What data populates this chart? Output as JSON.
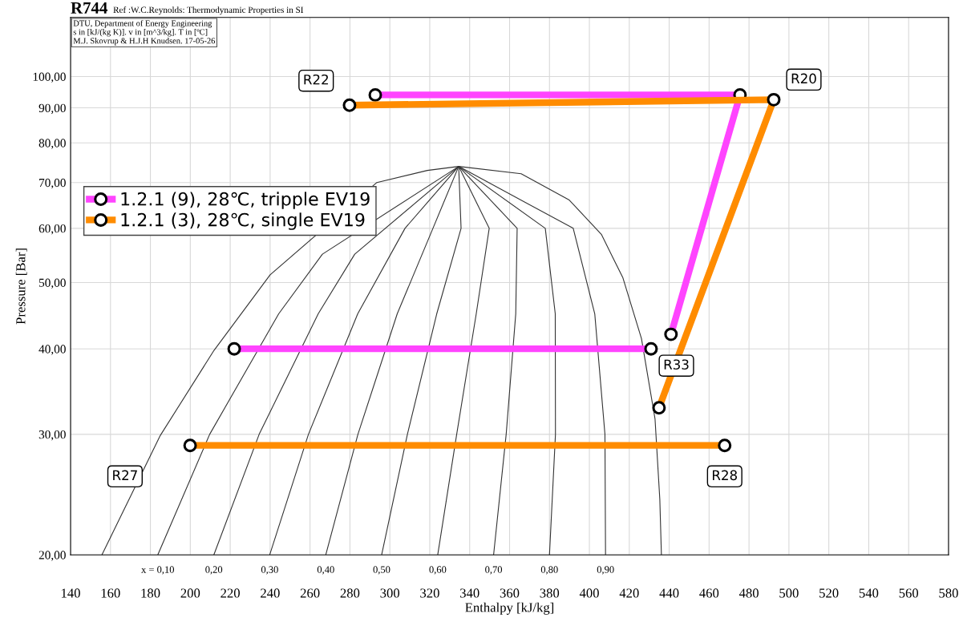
{
  "chart_data": {
    "type": "line",
    "title": "R744",
    "subtitle": "Ref :W.C.Reynolds: Thermodynamic Properties in SI",
    "xlabel": "Enthalpy [kJ/kg]",
    "ylabel": "Pressure [Bar]",
    "log": "y",
    "grid": true,
    "legend": "left",
    "marker": "circle",
    "line_style": "solid",
    "xlim": [
      140,
      580
    ],
    "xticks": [
      140,
      160,
      180,
      200,
      220,
      240,
      260,
      280,
      300,
      320,
      340,
      360,
      380,
      400,
      420,
      440,
      460,
      480,
      500,
      520,
      540,
      560,
      580
    ],
    "ylim": [
      20,
      122
    ],
    "yticks": [
      {
        "value": 20,
        "label": "20,00"
      },
      {
        "value": 30,
        "label": "30,00"
      },
      {
        "value": 40,
        "label": "40,00"
      },
      {
        "value": 50,
        "label": "50,00"
      },
      {
        "value": 60,
        "label": "60,00"
      },
      {
        "value": 70,
        "label": "70,00"
      },
      {
        "value": 80,
        "label": "80,00"
      },
      {
        "value": 90,
        "label": "90,00"
      },
      {
        "value": 100,
        "label": "100,00"
      }
    ],
    "series": [
      {
        "color": "#333333",
        "marker": "none",
        "x": [
          155.7,
          185.0,
          211.9,
          240.0,
          293.5,
          318.8,
          334.5,
          365.8,
          389.9,
          406.0,
          416.8,
          426.1,
          432.9,
          435.3,
          436.1
        ],
        "values": [
          20.0,
          29.9,
          39.8,
          51.3,
          70.0,
          72.9,
          73.9,
          72.1,
          66.0,
          58.8,
          50.8,
          41.4,
          31.6,
          24.1,
          20.0
        ]
      },
      {
        "color": "#333333",
        "marker": "none",
        "x": [
          183.7,
          209.7,
          244.3,
          266.2,
          334.5
        ],
        "values": [
          20,
          30,
          45,
          55,
          73.9
        ]
      },
      {
        "color": "#333333",
        "marker": "none",
        "x": [
          211.8,
          234.5,
          264.1,
          282.4,
          334.5
        ],
        "values": [
          20,
          30,
          45,
          55,
          73.9
        ]
      },
      {
        "color": "#333333",
        "marker": "none",
        "x": [
          239.8,
          259.2,
          283.9,
          307.6,
          334.5
        ],
        "values": [
          20,
          30,
          45,
          60,
          73.9
        ]
      },
      {
        "color": "#333333",
        "marker": "none",
        "x": [
          267.9,
          284.0,
          303.7,
          321.6,
          334.5
        ],
        "values": [
          20,
          30,
          45,
          60,
          73.9
        ]
      },
      {
        "color": "#333333",
        "marker": "none",
        "x": [
          295.9,
          308.8,
          323.5,
          335.7,
          334.5
        ],
        "values": [
          20,
          30,
          45,
          60,
          73.9
        ]
      },
      {
        "color": "#333333",
        "marker": "none",
        "x": [
          324.0,
          333.5,
          343.3,
          349.8,
          334.5
        ],
        "values": [
          20,
          30,
          45,
          60,
          73.9
        ]
      },
      {
        "color": "#333333",
        "marker": "none",
        "x": [
          352.0,
          358.3,
          363.1,
          363.8,
          334.5
        ],
        "values": [
          20,
          30,
          45,
          60,
          73.9
        ]
      },
      {
        "color": "#333333",
        "marker": "none",
        "x": [
          380.0,
          383.0,
          382.9,
          377.9,
          334.5
        ],
        "values": [
          20,
          30,
          45,
          60,
          73.9
        ]
      },
      {
        "color": "#333333",
        "marker": "none",
        "x": [
          408.1,
          407.8,
          402.7,
          391.9,
          334.5
        ],
        "values": [
          20,
          30,
          45,
          60,
          73.9
        ]
      },
      {
        "name": "1.2.1 (9), 28℃, tripple EV19",
        "color": "#ff44ff",
        "x": [
          222.0,
          430.9,
          null,
          440.9,
          475.5,
          292.7
        ],
        "values": [
          40.0,
          40.0,
          null,
          42.0,
          94.0,
          94.0
        ]
      },
      {
        "name": "1.2.1 (3), 28℃, single EV19",
        "color": "#ff8c00",
        "x": [
          279.8,
          492.4,
          434.9,
          null,
          199.9,
          467.8
        ],
        "values": [
          90.8,
          92.5,
          32.8,
          null,
          28.9,
          28.9
        ]
      }
    ],
    "annotations": [
      "DTU, Department of Energy Engineering",
      "s in [kJ/(kg K)]. v in [m^3/kg]. T in [ºC]",
      "M.J. Skovrup & H.J.H Knudsen. 17-05-26",
      {
        "text": "R22",
        "x": 279.8,
        "y": 90.8
      },
      {
        "text": "R20",
        "x": 492.4,
        "y": 92.5
      },
      "R33",
      "R27",
      "R28",
      {
        "text": "x = 0,10",
        "x": 183.7,
        "y": 20
      },
      {
        "text": "0,20",
        "x": 211.8,
        "y": 20
      },
      {
        "text": "0,30",
        "x": 239.8,
        "y": 20
      },
      {
        "text": "0,40",
        "x": 267.9,
        "y": 20
      },
      {
        "text": "0,50",
        "x": 295.9,
        "y": 20
      },
      {
        "text": "0,60",
        "x": 324.0,
        "y": 20
      },
      {
        "text": "0,70",
        "x": 352.0,
        "y": 20
      },
      {
        "text": "0,80",
        "x": 380.0,
        "y": 20
      },
      {
        "text": "0,90",
        "x": 408.1,
        "y": 20
      }
    ]
  }
}
